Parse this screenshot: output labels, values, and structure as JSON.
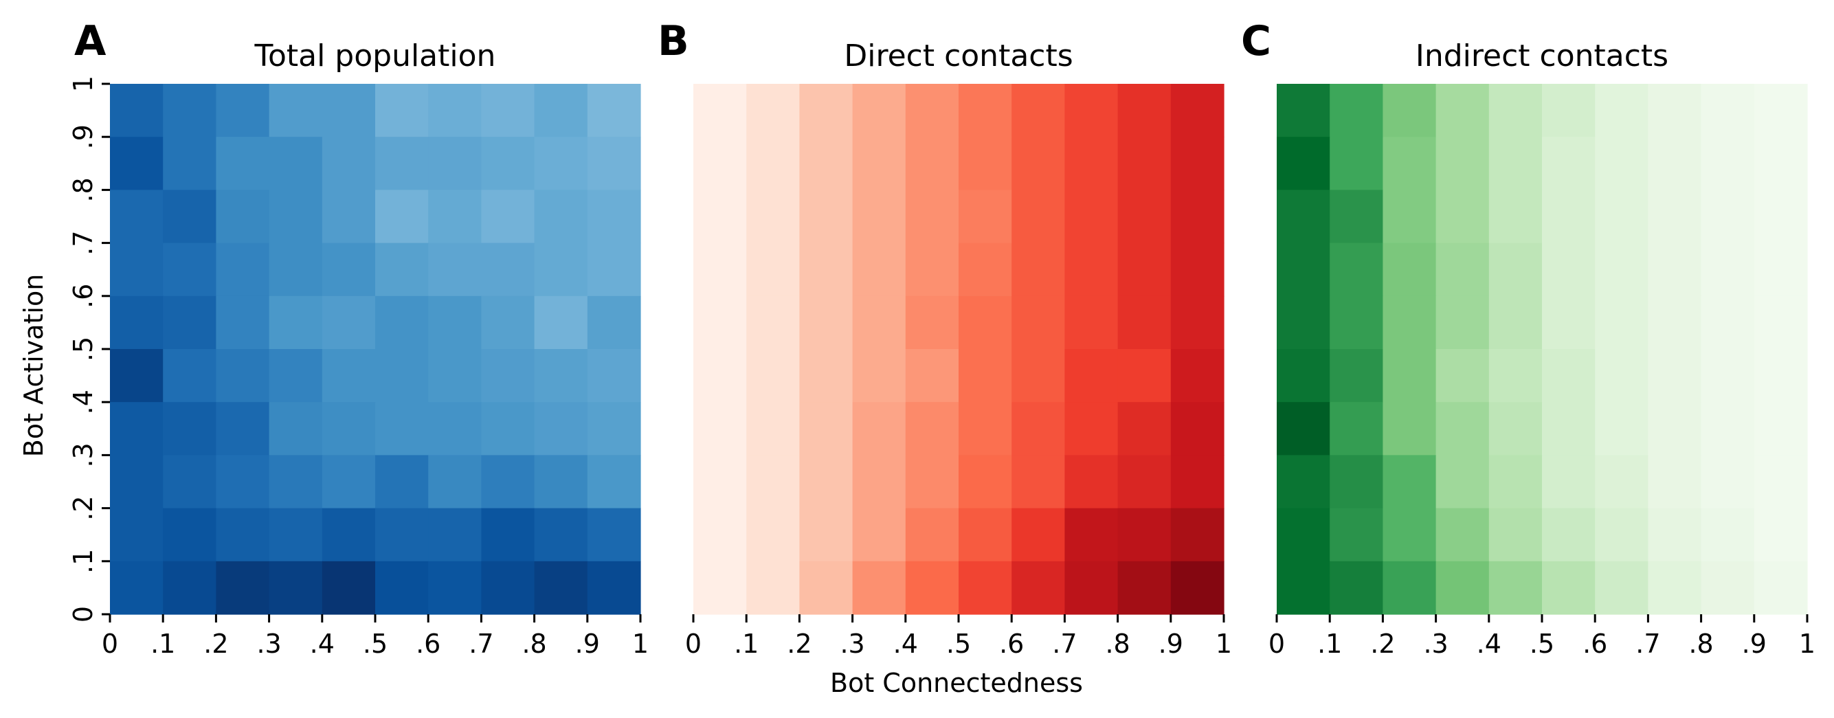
{
  "figure": {
    "xlabel": "Bot Connectedness",
    "ylabel": "Bot Activation"
  },
  "chart_data": [
    {
      "type": "heatmap",
      "panel_letter": "A",
      "title": "Total population",
      "colormap": "Blues",
      "x_tick_labels": [
        "0",
        ".1",
        ".2",
        ".3",
        ".4",
        ".5",
        ".6",
        ".7",
        ".8",
        ".9",
        "1"
      ],
      "y_tick_labels": [
        "0",
        ".1",
        ".2",
        ".3",
        ".4",
        ".5",
        ".6",
        ".7",
        ".8",
        ".9",
        "1"
      ],
      "xlim": [
        0,
        1
      ],
      "ylim": [
        0,
        1
      ],
      "rows_top_to_bottom": [
        [
          0.8,
          0.74,
          0.68,
          0.58,
          0.58,
          0.48,
          0.5,
          0.48,
          0.52,
          0.46
        ],
        [
          0.86,
          0.74,
          0.64,
          0.64,
          0.58,
          0.54,
          0.54,
          0.52,
          0.5,
          0.48
        ],
        [
          0.78,
          0.8,
          0.66,
          0.64,
          0.58,
          0.48,
          0.52,
          0.48,
          0.52,
          0.5
        ],
        [
          0.78,
          0.76,
          0.68,
          0.64,
          0.62,
          0.56,
          0.54,
          0.54,
          0.52,
          0.5
        ],
        [
          0.82,
          0.8,
          0.68,
          0.6,
          0.58,
          0.62,
          0.6,
          0.56,
          0.48,
          0.56
        ],
        [
          0.92,
          0.76,
          0.72,
          0.68,
          0.62,
          0.62,
          0.6,
          0.58,
          0.56,
          0.54
        ],
        [
          0.84,
          0.82,
          0.78,
          0.66,
          0.64,
          0.62,
          0.62,
          0.6,
          0.58,
          0.56
        ],
        [
          0.84,
          0.8,
          0.76,
          0.72,
          0.68,
          0.74,
          0.66,
          0.7,
          0.66,
          0.6
        ],
        [
          0.84,
          0.86,
          0.82,
          0.8,
          0.84,
          0.8,
          0.8,
          0.86,
          0.82,
          0.78
        ],
        [
          0.86,
          0.9,
          0.96,
          0.94,
          0.98,
          0.88,
          0.86,
          0.9,
          0.94,
          0.9
        ]
      ]
    },
    {
      "type": "heatmap",
      "panel_letter": "B",
      "title": "Direct contacts",
      "colormap": "Reds",
      "x_tick_labels": [
        "0",
        ".1",
        ".2",
        ".3",
        ".4",
        ".5",
        ".6",
        ".7",
        ".8",
        ".9",
        "1"
      ],
      "y_tick_labels": [],
      "xlim": [
        0,
        1
      ],
      "ylim": [
        0,
        1
      ],
      "rows_top_to_bottom": [
        [
          0.04,
          0.12,
          0.22,
          0.3,
          0.38,
          0.46,
          0.54,
          0.6,
          0.66,
          0.72
        ],
        [
          0.04,
          0.12,
          0.22,
          0.3,
          0.38,
          0.46,
          0.54,
          0.6,
          0.66,
          0.72
        ],
        [
          0.04,
          0.12,
          0.22,
          0.3,
          0.38,
          0.44,
          0.54,
          0.6,
          0.66,
          0.72
        ],
        [
          0.04,
          0.12,
          0.22,
          0.3,
          0.38,
          0.46,
          0.54,
          0.6,
          0.66,
          0.72
        ],
        [
          0.04,
          0.12,
          0.22,
          0.3,
          0.4,
          0.48,
          0.54,
          0.6,
          0.66,
          0.72
        ],
        [
          0.04,
          0.12,
          0.22,
          0.3,
          0.36,
          0.48,
          0.54,
          0.62,
          0.62,
          0.74
        ],
        [
          0.04,
          0.12,
          0.22,
          0.32,
          0.4,
          0.48,
          0.56,
          0.62,
          0.68,
          0.76
        ],
        [
          0.04,
          0.12,
          0.22,
          0.32,
          0.4,
          0.5,
          0.56,
          0.66,
          0.7,
          0.76
        ],
        [
          0.04,
          0.12,
          0.22,
          0.32,
          0.44,
          0.54,
          0.64,
          0.78,
          0.8,
          0.86
        ],
        [
          0.04,
          0.12,
          0.24,
          0.38,
          0.5,
          0.6,
          0.7,
          0.8,
          0.88,
          0.94
        ]
      ]
    },
    {
      "type": "heatmap",
      "panel_letter": "C",
      "title": "Indirect contacts",
      "colormap": "Greens",
      "x_tick_labels": [
        "0",
        ".1",
        ".2",
        ".3",
        ".4",
        ".5",
        ".6",
        ".7",
        ".8",
        ".9",
        "1"
      ],
      "y_tick_labels": [],
      "xlim": [
        0,
        1
      ],
      "ylim": [
        0,
        1
      ],
      "rows_top_to_bottom": [
        [
          0.82,
          0.64,
          0.48,
          0.36,
          0.26,
          0.2,
          0.14,
          0.1,
          0.06,
          0.04
        ],
        [
          0.88,
          0.64,
          0.46,
          0.36,
          0.26,
          0.18,
          0.14,
          0.1,
          0.06,
          0.04
        ],
        [
          0.82,
          0.72,
          0.46,
          0.36,
          0.26,
          0.18,
          0.14,
          0.1,
          0.06,
          0.04
        ],
        [
          0.82,
          0.68,
          0.48,
          0.38,
          0.28,
          0.18,
          0.14,
          0.1,
          0.06,
          0.04
        ],
        [
          0.82,
          0.68,
          0.48,
          0.38,
          0.28,
          0.18,
          0.14,
          0.1,
          0.06,
          0.04
        ],
        [
          0.84,
          0.72,
          0.48,
          0.34,
          0.26,
          0.2,
          0.14,
          0.1,
          0.06,
          0.04
        ],
        [
          0.92,
          0.68,
          0.48,
          0.38,
          0.28,
          0.2,
          0.14,
          0.1,
          0.06,
          0.04
        ],
        [
          0.84,
          0.74,
          0.58,
          0.38,
          0.3,
          0.2,
          0.16,
          0.1,
          0.06,
          0.04
        ],
        [
          0.86,
          0.72,
          0.58,
          0.44,
          0.32,
          0.24,
          0.18,
          0.12,
          0.08,
          0.04
        ],
        [
          0.86,
          0.8,
          0.66,
          0.5,
          0.4,
          0.3,
          0.22,
          0.14,
          0.1,
          0.06
        ]
      ]
    }
  ]
}
